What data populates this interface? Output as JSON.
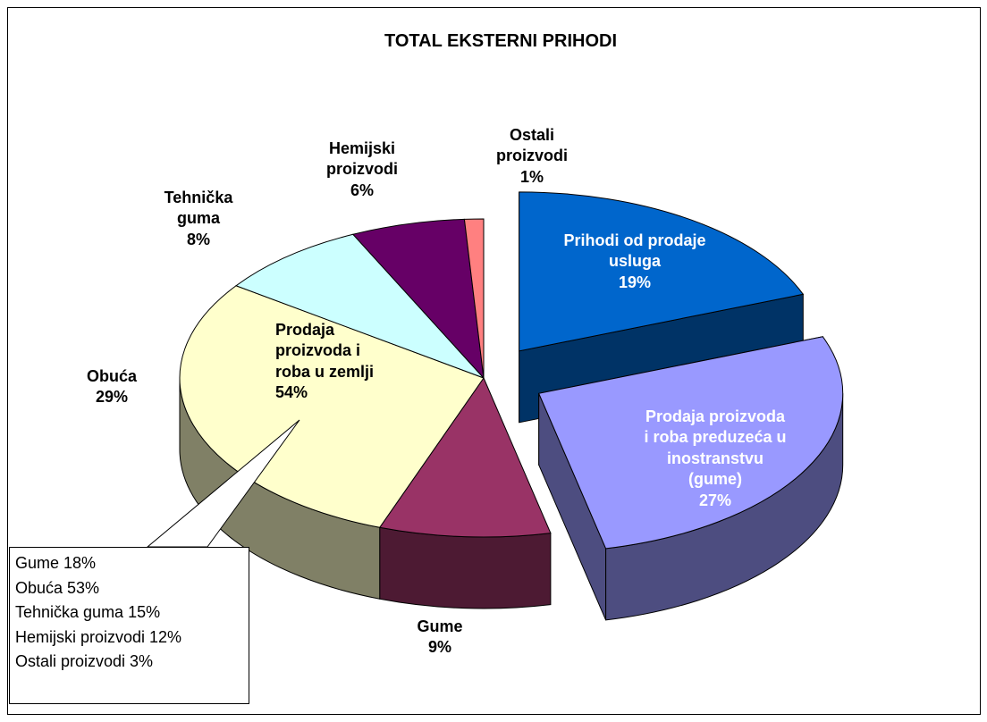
{
  "chart_data": {
    "type": "pie",
    "title": "TOTAL EKSTERNI PRIHODI",
    "categories": [
      "Prihodi od prodaje usluga",
      "Prodaja proizvoda i roba preduzeća u inostranstvu (gume)",
      "Gume",
      "Obuća",
      "Tehnička guma",
      "Hemijski proizvodi",
      "Ostali proizvodi"
    ],
    "values": [
      19,
      27,
      9,
      29,
      8,
      6,
      1
    ],
    "value_labels": [
      "19%",
      "27%",
      "9%",
      "29%",
      "8%",
      "6%",
      "1%"
    ],
    "colors": [
      "#0066cc",
      "#9999ff",
      "#993366",
      "#ffffcc",
      "#ccffff",
      "#660066",
      "#ff8080"
    ],
    "side_colors": [
      "#003366",
      "#4d4d80",
      "#4d1a33",
      "#808066",
      "#668080",
      "#330033",
      "#804040"
    ],
    "exploded": [
      true,
      true,
      false,
      false,
      false,
      false,
      false
    ],
    "annotation": "Prodaja proizvoda i roba u zemlji 54%",
    "callout": [
      "Gume 18%",
      "Obuća 53%",
      "Tehnička guma 15%",
      "Hemijski proizvodi 12%",
      "Ostali proizvodi 3%"
    ]
  }
}
